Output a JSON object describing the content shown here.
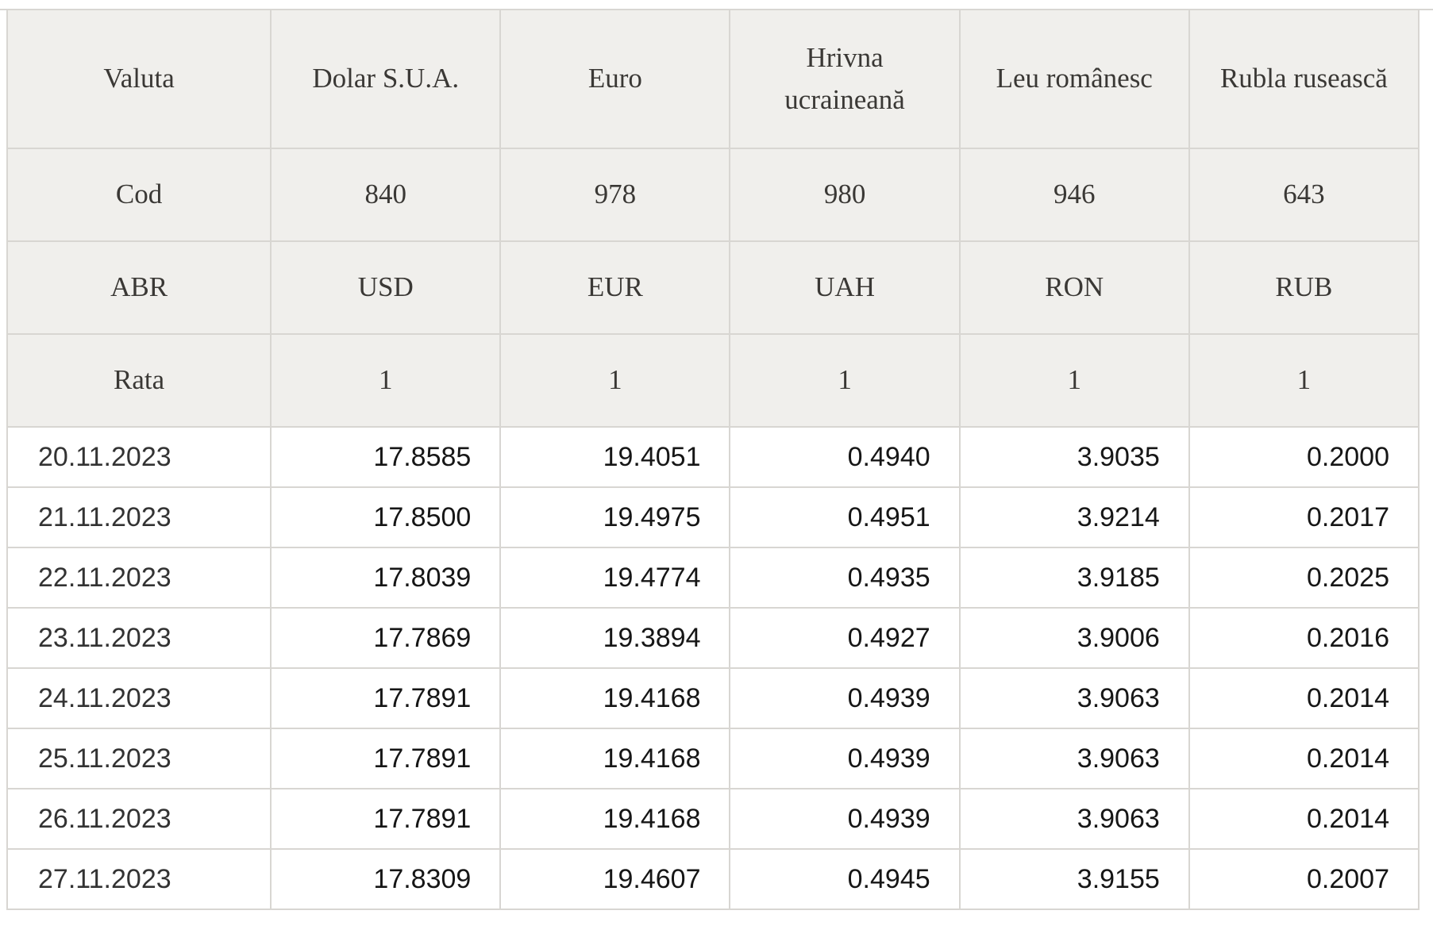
{
  "table": {
    "meta_rows": [
      {
        "label": "Valuta",
        "values": [
          "Dolar S.U.A.",
          "Euro",
          "Hrivna ucraineană",
          "Leu românesc",
          "Rubla rusească"
        ]
      },
      {
        "label": "Cod",
        "values": [
          "840",
          "978",
          "980",
          "946",
          "643"
        ]
      },
      {
        "label": "ABR",
        "values": [
          "USD",
          "EUR",
          "UAH",
          "RON",
          "RUB"
        ]
      },
      {
        "label": "Rata",
        "values": [
          "1",
          "1",
          "1",
          "1",
          "1"
        ]
      }
    ],
    "rows": [
      {
        "date": "20.11.2023",
        "values": [
          "17.8585",
          "19.4051",
          "0.4940",
          "3.9035",
          "0.2000"
        ]
      },
      {
        "date": "21.11.2023",
        "values": [
          "17.8500",
          "19.4975",
          "0.4951",
          "3.9214",
          "0.2017"
        ]
      },
      {
        "date": "22.11.2023",
        "values": [
          "17.8039",
          "19.4774",
          "0.4935",
          "3.9185",
          "0.2025"
        ]
      },
      {
        "date": "23.11.2023",
        "values": [
          "17.7869",
          "19.3894",
          "0.4927",
          "3.9006",
          "0.2016"
        ]
      },
      {
        "date": "24.11.2023",
        "values": [
          "17.7891",
          "19.4168",
          "0.4939",
          "3.9063",
          "0.2014"
        ]
      },
      {
        "date": "25.11.2023",
        "values": [
          "17.7891",
          "19.4168",
          "0.4939",
          "3.9063",
          "0.2014"
        ]
      },
      {
        "date": "26.11.2023",
        "values": [
          "17.7891",
          "19.4168",
          "0.4939",
          "3.9063",
          "0.2014"
        ]
      },
      {
        "date": "27.11.2023",
        "values": [
          "17.8309",
          "19.4607",
          "0.4945",
          "3.9155",
          "0.2007"
        ]
      }
    ],
    "colors": {
      "header_bg": "#f0efec",
      "border": "#d8d6d2",
      "header_text": "#3a3835",
      "date_text": "#333333",
      "value_text": "#161616",
      "page_bg": "#ffffff"
    }
  }
}
